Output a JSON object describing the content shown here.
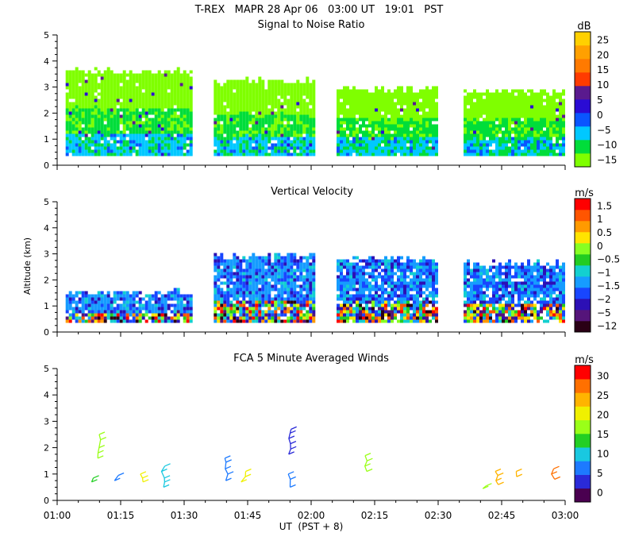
{
  "header": {
    "line1": "T-REX   MAPR 28 Apr 06   03:00 UT   19:01   PST"
  },
  "x_axis": {
    "label": "UT  (PST + 8)",
    "tick_labels": [
      "01:00",
      "01:15",
      "01:30",
      "01:45",
      "02:00",
      "02:15",
      "02:30",
      "02:45",
      "03:00"
    ]
  },
  "chart_data": [
    {
      "type": "heatmap",
      "title": "Signal to Noise Ratio",
      "ylabel": "",
      "ylim": [
        0,
        5
      ],
      "xlim_minutes": [
        0,
        120
      ],
      "y_ticks": [
        0,
        1,
        2,
        3,
        4,
        5
      ],
      "colorbar": {
        "unit": "dB",
        "tick_labels": [
          "25",
          "20",
          "15",
          "10",
          "5",
          "0",
          "−5",
          "−10",
          "−15"
        ],
        "colors": [
          "#7fff00",
          "#00dd3a",
          "#00c8ff",
          "#0a55ff",
          "#2a0bd4",
          "#5a1a8e",
          "#ff3b00",
          "#ff7a00",
          "#ffa000",
          "#ffd000"
        ]
      },
      "segments": [
        {
          "start_min": 2,
          "end_min": 32,
          "top_km": 3.7,
          "base_km": 0.35
        },
        {
          "start_min": 37,
          "end_min": 61,
          "top_km": 3.3,
          "base_km": 0.35
        },
        {
          "start_min": 66,
          "end_min": 90,
          "top_km": 3.0,
          "base_km": 0.35
        },
        {
          "start_min": 96,
          "end_min": 120,
          "top_km": 2.9,
          "base_km": 0.35
        }
      ]
    },
    {
      "type": "heatmap",
      "title": "Vertical Velocity",
      "ylabel": "Altitude (km)",
      "ylim": [
        0,
        5
      ],
      "xlim_minutes": [
        0,
        120
      ],
      "y_ticks": [
        0,
        1,
        2,
        3,
        4,
        5
      ],
      "colorbar": {
        "unit": "m/s",
        "tick_labels": [
          "1.5",
          "1",
          "0.5",
          "0",
          "−0.5",
          "−1",
          "−1.5",
          "−2",
          "−5",
          "−12"
        ],
        "colors": [
          "#2a0015",
          "#55157a",
          "#2c10b5",
          "#1846ff",
          "#169cff",
          "#13d0d0",
          "#22cc22",
          "#88ff22",
          "#ffe400",
          "#ff9a00",
          "#ff5500",
          "#ff0000"
        ]
      },
      "segments": [
        {
          "start_min": 2,
          "end_min": 32,
          "top_km": 1.6,
          "base_km": 0.35
        },
        {
          "start_min": 37,
          "end_min": 61,
          "top_km": 3.0,
          "base_km": 0.35
        },
        {
          "start_min": 66,
          "end_min": 90,
          "top_km": 2.9,
          "base_km": 0.35
        },
        {
          "start_min": 96,
          "end_min": 120,
          "top_km": 2.7,
          "base_km": 0.35
        }
      ]
    },
    {
      "type": "scatter",
      "title": "FCA 5 Minute Averaged Winds",
      "ylabel": "",
      "ylim": [
        0,
        5
      ],
      "xlim_minutes": [
        0,
        120
      ],
      "y_ticks": [
        0,
        1,
        2,
        3,
        4,
        5
      ],
      "colorbar": {
        "unit": "m/s",
        "tick_labels": [
          "30",
          "25",
          "20",
          "15",
          "10",
          "5",
          "0"
        ],
        "colors": [
          "#4a0050",
          "#2a2ad8",
          "#1d7aff",
          "#19c8e0",
          "#23cf23",
          "#9aff18",
          "#f0f000",
          "#ffb400",
          "#ff7000",
          "#ff0000"
        ]
      },
      "wind_profiles": [
        {
          "t_min": 10,
          "heights_km": [
            2.5,
            2.3,
            2.0,
            1.8,
            1.6
          ],
          "speed_ms": 16
        },
        {
          "t_min": 8,
          "heights_km": [
            0.85,
            0.7
          ],
          "speed_ms": 14
        },
        {
          "t_min": 14,
          "heights_km": [
            0.95,
            0.75
          ],
          "speed_ms": 5
        },
        {
          "t_min": 20,
          "heights_km": [
            1.0,
            0.85,
            0.7
          ],
          "speed_ms": 19
        },
        {
          "t_min": 25,
          "heights_km": [
            1.3,
            1.1,
            0.85,
            0.7,
            0.5
          ],
          "speed_ms": 10
        },
        {
          "t_min": 40,
          "heights_km": [
            1.6,
            1.45,
            1.2,
            1.0,
            0.75
          ],
          "speed_ms": 6
        },
        {
          "t_min": 44,
          "heights_km": [
            1.1,
            0.9,
            0.7
          ],
          "speed_ms": 19
        },
        {
          "t_min": 55,
          "heights_km": [
            2.7,
            2.55,
            2.35,
            2.15,
            1.95,
            1.75
          ],
          "speed_ms": 4
        },
        {
          "t_min": 55,
          "heights_km": [
            1.0,
            0.8,
            0.5
          ],
          "speed_ms": 5
        },
        {
          "t_min": 73,
          "heights_km": [
            1.7,
            1.5,
            1.3,
            1.1
          ],
          "speed_ms": 15
        },
        {
          "t_min": 101,
          "heights_km": [
            0.55,
            0.45
          ],
          "speed_ms": 17
        },
        {
          "t_min": 104,
          "heights_km": [
            1.1,
            0.95,
            0.75,
            0.6
          ],
          "speed_ms": 24
        },
        {
          "t_min": 109,
          "heights_km": [
            1.1,
            0.9
          ],
          "speed_ms": 22
        },
        {
          "t_min": 117,
          "heights_km": [
            1.2,
            1.0,
            0.8
          ],
          "speed_ms": 26
        }
      ]
    }
  ]
}
